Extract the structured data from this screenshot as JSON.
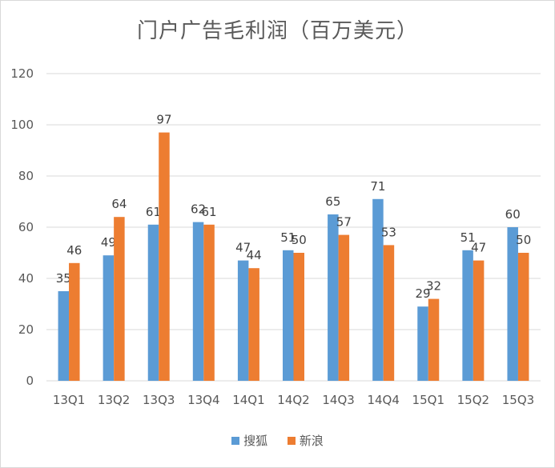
{
  "chart_data": {
    "type": "bar",
    "title": "门户广告毛利润（百万美元）",
    "categories": [
      "13Q1",
      "13Q2",
      "13Q3",
      "13Q4",
      "14Q1",
      "14Q2",
      "14Q3",
      "14Q4",
      "15Q1",
      "15Q2",
      "15Q3"
    ],
    "series": [
      {
        "name": "搜狐",
        "color": "#5B9BD5",
        "values": [
          35,
          49,
          61,
          62,
          47,
          51,
          65,
          71,
          29,
          51,
          60
        ]
      },
      {
        "name": "新浪",
        "color": "#ED7D31",
        "values": [
          46,
          64,
          97,
          61,
          44,
          50,
          57,
          53,
          32,
          47,
          50
        ]
      }
    ],
    "ylim": [
      0,
      120
    ],
    "yticks": [
      0,
      20,
      40,
      60,
      80,
      100,
      120
    ],
    "grid": true,
    "legend_position": "bottom"
  }
}
